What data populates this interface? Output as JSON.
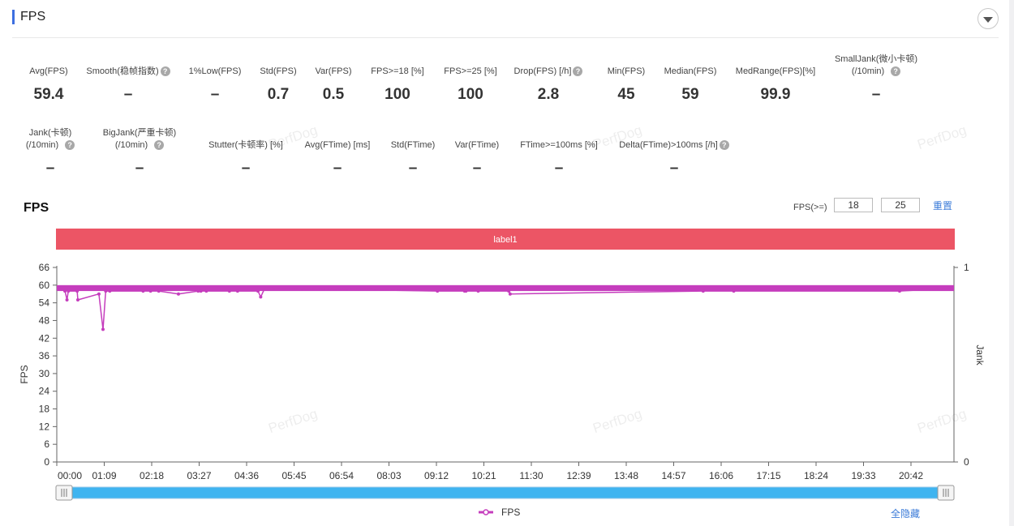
{
  "panel": {
    "title": "FPS",
    "collapse_icon": "chevron-down-icon"
  },
  "metrics_row1": [
    {
      "label": "Avg(FPS)",
      "value": "59.4",
      "help": false
    },
    {
      "label": "Smooth(稳帧指数)",
      "value": "–",
      "help": true
    },
    {
      "label": "1%Low(FPS)",
      "value": "–",
      "help": false
    },
    {
      "label": "Std(FPS)",
      "value": "0.7",
      "help": false
    },
    {
      "label": "Var(FPS)",
      "value": "0.5",
      "help": false
    },
    {
      "label": "FPS>=18 [%]",
      "value": "100",
      "help": false
    },
    {
      "label": "FPS>=25 [%]",
      "value": "100",
      "help": false
    },
    {
      "label": "Drop(FPS) [/h]",
      "value": "2.8",
      "help": true
    },
    {
      "label": "Min(FPS)",
      "value": "45",
      "help": false
    },
    {
      "label": "Median(FPS)",
      "value": "59",
      "help": false
    },
    {
      "label": "MedRange(FPS)[%]",
      "value": "99.9",
      "help": false
    },
    {
      "label": "SmallJank(微小卡顿)",
      "label2": "(/10min)",
      "value": "–",
      "help": true
    }
  ],
  "metrics_row2": [
    {
      "label": "Jank(卡顿)",
      "label2": "(/10min)",
      "value": "–",
      "help": true
    },
    {
      "label": "BigJank(严重卡顿)",
      "label2": "(/10min)",
      "value": "–",
      "help": true
    },
    {
      "label": "Stutter(卡顿率) [%]",
      "value": "–",
      "help": false
    },
    {
      "label": "Avg(FTime) [ms]",
      "value": "–",
      "help": false
    },
    {
      "label": "Std(FTime)",
      "value": "–",
      "help": false
    },
    {
      "label": "Var(FTime)",
      "value": "–",
      "help": false
    },
    {
      "label": "FTime>=100ms [%]",
      "value": "–",
      "help": false
    },
    {
      "label": "Delta(FTime)>100ms [/h]",
      "value": "–",
      "help": true
    }
  ],
  "watermark": "PerfDog",
  "chart": {
    "title": "FPS",
    "threshold_label": "FPS(>=)",
    "threshold_1": "18",
    "threshold_2": "25",
    "reset_label": "重置",
    "label_band": "label1",
    "legend_label": "FPS",
    "hide_all_label": "全隐藏",
    "band_color": "#ec5565",
    "series_color": "#c53dbd",
    "slider_color": "#3fb4f0"
  },
  "chart_data": {
    "type": "line",
    "xlabel": "",
    "ylabel": "FPS",
    "y2label": "Jank",
    "ylim": [
      0,
      66
    ],
    "yticks": [
      0,
      6,
      12,
      18,
      24,
      30,
      36,
      42,
      48,
      54,
      60,
      66
    ],
    "y2ticks": [
      0,
      1
    ],
    "x_tick_labels": [
      "00:00",
      "01:09",
      "02:18",
      "03:27",
      "04:36",
      "05:45",
      "06:54",
      "08:03",
      "09:12",
      "10:21",
      "11:30",
      "12:39",
      "13:48",
      "14:57",
      "16:06",
      "17:15",
      "18:24",
      "19:33",
      "20:42"
    ],
    "x_range_seconds": [
      0,
      1320
    ],
    "series": [
      {
        "name": "FPS",
        "baseline": 59,
        "x_seconds": [
          0,
          12,
          15,
          17,
          30,
          31,
          62,
          68,
          72,
          78,
          127,
          138,
          150,
          179,
          208,
          212,
          220,
          254,
          266,
          296,
          300,
          306,
          560,
          600,
          602,
          620,
          665,
          667,
          951,
          996,
          1240,
          1320
        ],
        "values": [
          59,
          58,
          55,
          58,
          58,
          55,
          57,
          45,
          58,
          58,
          58,
          58,
          58,
          57,
          58,
          58,
          58,
          58,
          58,
          58,
          56,
          59,
          58,
          58,
          58,
          58,
          58,
          57,
          58,
          58,
          58,
          59
        ]
      }
    ],
    "grid": false,
    "legend": "bottom-center"
  }
}
